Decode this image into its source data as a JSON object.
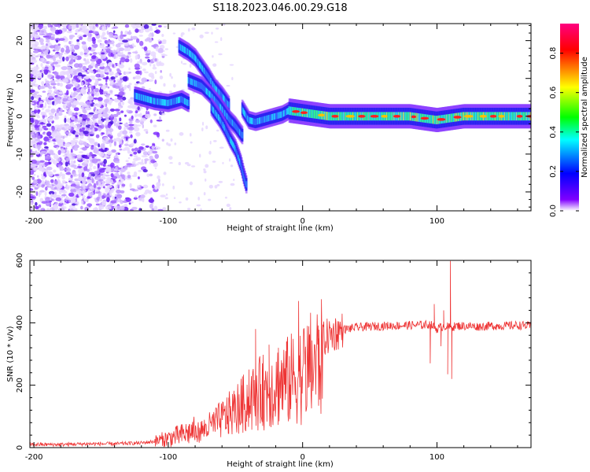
{
  "title": "S118.2023.046.00.29.G18",
  "chart_data": [
    {
      "type": "heatmap",
      "xlabel": "Height of straight line (km)",
      "ylabel": "Frequency (Hz)",
      "xlim": [
        -203,
        170
      ],
      "ylim": [
        -25,
        24.5
      ],
      "xticks": [
        -200,
        -100,
        0,
        100
      ],
      "yticks": [
        -20,
        -10,
        0,
        10,
        20
      ],
      "grid": false,
      "colorbar": {
        "label": "Normalized spectral amplitude",
        "range": [
          0.0,
          0.95
        ],
        "ticks": [
          "0.0",
          "0.2",
          "0.4",
          "0.6",
          "0.8"
        ],
        "colors": [
          "#ffffff",
          "#8000ff",
          "#0000ff",
          "#00ffff",
          "#00ff00",
          "#ffff00",
          "#ff0000",
          "#ff0080"
        ]
      },
      "features": [
        {
          "x": [
            -125,
            -120,
            -110,
            -100,
            -95,
            -90,
            -85
          ],
          "y": [
            5.5,
            5.0,
            4.0,
            3.5,
            4.0,
            4.5,
            3.5
          ]
        },
        {
          "x": [
            -92,
            -85,
            -80,
            -75,
            -70,
            -65,
            -60,
            -55
          ],
          "y": [
            18.5,
            17.0,
            15.5,
            13.0,
            10.5,
            7.5,
            5.5,
            3.0
          ]
        },
        {
          "x": [
            -85,
            -75,
            -68,
            -62,
            -58,
            -54,
            -50,
            -45
          ],
          "y": [
            9.5,
            8.0,
            5.5,
            3.0,
            1.0,
            -1.0,
            -2.5,
            -5.0
          ]
        },
        {
          "x": [
            -68,
            -62,
            -58,
            -54,
            -50,
            -46,
            -44,
            -42
          ],
          "y": [
            2.5,
            -0.5,
            -3.0,
            -6.0,
            -8.5,
            -12.5,
            -15.5,
            -18.0
          ]
        },
        {
          "x": [
            -45,
            -40,
            -35,
            -30,
            -25,
            -20,
            -15,
            -10
          ],
          "y": [
            2.0,
            -1.0,
            -1.5,
            -1.0,
            -0.5,
            0.0,
            0.5,
            1.5
          ]
        },
        {
          "x": [
            -10,
            0,
            20,
            40,
            60,
            80,
            100,
            120,
            140,
            170
          ],
          "y": [
            1.5,
            1.0,
            0.0,
            0.0,
            0.0,
            0.0,
            -1.0,
            0.0,
            0.0,
            0.0
          ]
        }
      ]
    },
    {
      "type": "line",
      "xlabel": "Height of straight line (km)",
      "ylabel": "SNR (10 * v/v)",
      "xlim": [
        -203,
        170
      ],
      "ylim": [
        0,
        600
      ],
      "xticks": [
        -200,
        -100,
        0,
        100
      ],
      "yticks": [
        0,
        200,
        400,
        600
      ],
      "grid": false,
      "series": [
        {
          "color": "#ee3333",
          "x": [
            -203,
            -180,
            -160,
            -140,
            -120,
            -110,
            -100,
            -90,
            -80,
            -70,
            -60,
            -50,
            -40,
            -30,
            -20,
            -10,
            0,
            10,
            20,
            30,
            40,
            50,
            60,
            70,
            80,
            90,
            95,
            100,
            105,
            110,
            115,
            120,
            130,
            140,
            150,
            160,
            170
          ],
          "y": [
            10,
            10,
            12,
            12,
            15,
            20,
            30,
            40,
            55,
            80,
            110,
            145,
            185,
            215,
            240,
            260,
            290,
            330,
            360,
            378,
            385,
            388,
            390,
            391,
            392,
            393,
            395,
            380,
            390,
            385,
            390,
            390,
            388,
            390,
            390,
            392,
            390
          ],
          "spikes": [
            {
              "x": -65,
              "y": 110
            },
            {
              "x": -55,
              "y": 160
            },
            {
              "x": -45,
              "y": 200
            },
            {
              "x": -40,
              "y": 250
            },
            {
              "x": -35,
              "y": 380
            },
            {
              "x": -30,
              "y": 270
            },
            {
              "x": -25,
              "y": 330
            },
            {
              "x": -18,
              "y": 320
            },
            {
              "x": -12,
              "y": 340
            },
            {
              "x": -3,
              "y": 470
            },
            {
              "x": 5,
              "y": 360
            },
            {
              "x": 12,
              "y": 350
            },
            {
              "x": 95,
              "y": 270
            },
            {
              "x": 98,
              "y": 460
            },
            {
              "x": 103,
              "y": 325
            },
            {
              "x": 105,
              "y": 440
            },
            {
              "x": 108,
              "y": 235
            },
            {
              "x": 110,
              "y": 598
            },
            {
              "x": 111,
              "y": 220
            }
          ]
        }
      ]
    }
  ]
}
